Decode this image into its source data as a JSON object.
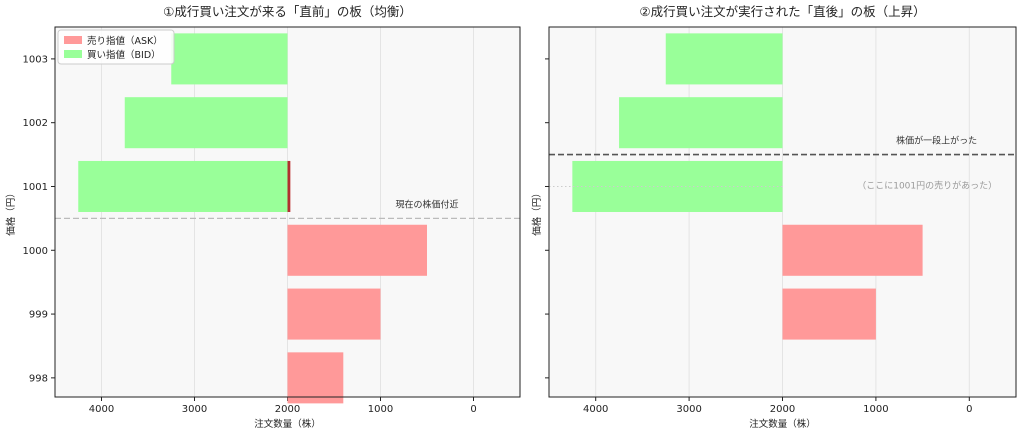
{
  "colors": {
    "ask": "#ff9999",
    "bid": "#99ff99",
    "ask_edge": "#b03030",
    "panel_bg": "#f8f8f8",
    "grid": "#e4e4e4",
    "ref_line_left": "#bbbbbb",
    "ref_line_right": "#555555",
    "dotted_line": "#cccccc"
  },
  "chart_data": [
    {
      "type": "bar",
      "orientation": "horizontal",
      "title": "①成行買い注文が来る「直前」の板（均衡）",
      "xlabel": "注文数量（株）",
      "ylabel": "価格（円）",
      "xlim": [
        4500,
        -500
      ],
      "x_ticks": [
        4000,
        3000,
        2000,
        1000,
        0
      ],
      "x_tick_labels": [
        "4000",
        "3000",
        "2000",
        "1000",
        "0"
      ],
      "y_ticks": [
        998,
        999,
        1000,
        1001,
        1002,
        1003
      ],
      "y_tick_labels": [
        "998",
        "999",
        "1000",
        "1001",
        "1002",
        "1003"
      ],
      "show_y_tick_labels": true,
      "grid": true,
      "legend": "top-left",
      "legend_entries": [
        {
          "key": "ask",
          "label": "売り指値（ASK）"
        },
        {
          "key": "bid",
          "label": "買い指値（BID）"
        }
      ],
      "series": [
        {
          "key": "ask",
          "base": 2000,
          "points": [
            {
              "price": 1001,
              "ends": 1970
            },
            {
              "price": 1000,
              "ends": 500
            },
            {
              "price": 999,
              "ends": 1000
            },
            {
              "price": 998,
              "ends": 1400
            }
          ]
        },
        {
          "key": "bid",
          "base": 2000,
          "points": [
            {
              "price": 1003,
              "ends": 3250
            },
            {
              "price": 1002,
              "ends": 3750
            },
            {
              "price": 1001,
              "ends": 4250
            }
          ]
        }
      ],
      "reference_line": {
        "price": 1000.5,
        "style": "dashed",
        "label": "現在の株価付近"
      }
    },
    {
      "type": "bar",
      "orientation": "horizontal",
      "title": "②成行買い注文が実行された「直後」の板（上昇）",
      "xlabel": "注文数量（株）",
      "ylabel": "価格（円）",
      "xlim": [
        4500,
        -500
      ],
      "x_ticks": [
        4000,
        3000,
        2000,
        1000,
        0
      ],
      "x_tick_labels": [
        "4000",
        "3000",
        "2000",
        "1000",
        "0"
      ],
      "y_ticks": [
        998,
        999,
        1000,
        1001,
        1002,
        1003
      ],
      "show_y_tick_labels": false,
      "grid": true,
      "series": [
        {
          "key": "ask",
          "base": 2000,
          "points": [
            {
              "price": 1000,
              "ends": 500
            },
            {
              "price": 999,
              "ends": 1000
            }
          ]
        },
        {
          "key": "bid",
          "base": 2000,
          "points": [
            {
              "price": 1003,
              "ends": 3250
            },
            {
              "price": 1002,
              "ends": 3750
            },
            {
              "price": 1001,
              "ends": 4250
            }
          ]
        }
      ],
      "reference_line": {
        "price": 1001.5,
        "style": "dashed",
        "label": "株価が一段上がった"
      },
      "dotted_line": {
        "price": 1001
      },
      "note": {
        "price": 1001,
        "x": 1000,
        "text": "（ここに1001円の売りがあった）"
      }
    }
  ]
}
